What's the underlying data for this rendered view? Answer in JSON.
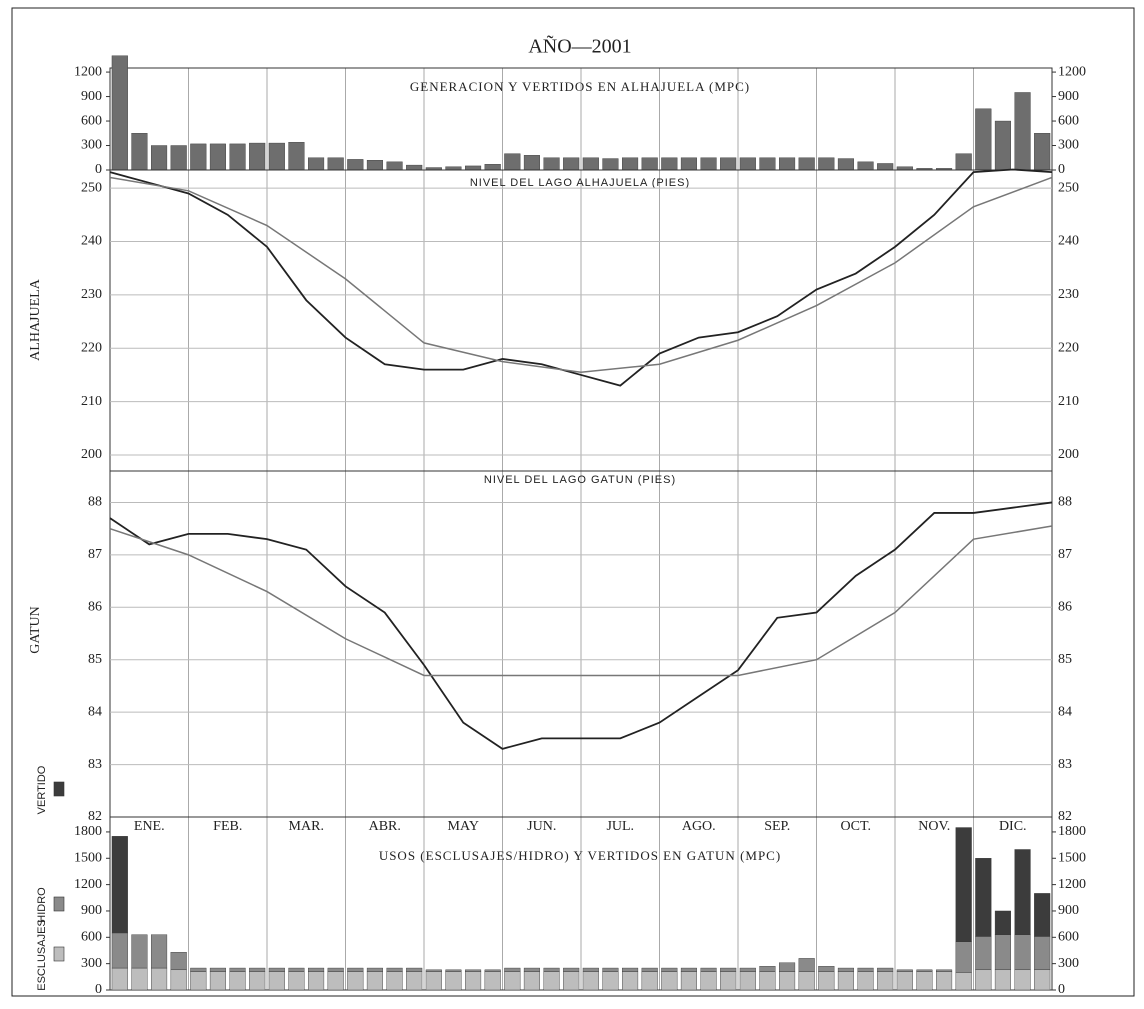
{
  "title": "AÑO—2001",
  "months": [
    "ENE.",
    "FEB.",
    "MAR.",
    "ABR.",
    "MAY",
    "JUN.",
    "JUL.",
    "AGO.",
    "SEP.",
    "OCT.",
    "NOV.",
    "DIC."
  ],
  "side_labels": {
    "alhajuela": "ALHAJUELA",
    "gatun": "GATUN"
  },
  "chart_data": [
    {
      "type": "bar",
      "title": "GENERACION Y VERTIDOS EN ALHAJUELA (MPC)",
      "ylim": [
        0,
        1250
      ],
      "yticks": [
        0,
        300,
        600,
        900,
        1200
      ],
      "xlim": [
        0,
        12
      ],
      "series": [
        {
          "color": "#6e6e6e",
          "values": [
            1400,
            450,
            300,
            300,
            320,
            320,
            320,
            330,
            330,
            340,
            150,
            150,
            130,
            120,
            100,
            60,
            30,
            40,
            50,
            70,
            200,
            180,
            150,
            150,
            150,
            140,
            150,
            150,
            150,
            150,
            150,
            150,
            150,
            150,
            150,
            150,
            150,
            140,
            100,
            80,
            40,
            20,
            20,
            200,
            750,
            600,
            950,
            450
          ]
        }
      ]
    },
    {
      "type": "line",
      "title": "NIVEL DEL LAGO ALHAJUELA (PIES)",
      "ylim": [
        197,
        253.4
      ],
      "yticks": [
        200,
        210,
        220,
        230,
        240,
        250
      ],
      "xlim": [
        0,
        12
      ],
      "grid": true,
      "series": [
        {
          "color": "#222222",
          "x": [
            0,
            0.5,
            1,
            1.5,
            2,
            2.5,
            3,
            3.5,
            4,
            4.5,
            5,
            5.5,
            6,
            6.5,
            7,
            7.5,
            8,
            8.5,
            9,
            9.5,
            10,
            10.5,
            11,
            11.5,
            12
          ],
          "values": [
            253,
            251,
            249,
            245,
            239,
            229,
            222,
            217,
            216,
            216,
            218,
            217,
            215,
            213,
            219,
            222,
            223,
            226,
            231,
            234,
            239,
            245,
            253,
            253.5,
            253
          ]
        },
        {
          "color": "#777777",
          "x": [
            0,
            1,
            2,
            3,
            4,
            5,
            6,
            7,
            8,
            9,
            10,
            11,
            12
          ],
          "values": [
            252,
            249.5,
            243,
            233,
            221,
            217.5,
            215.5,
            217,
            221.5,
            228,
            236,
            246.5,
            252
          ]
        }
      ]
    },
    {
      "type": "line",
      "title": "NIVEL DEL LAGO GATUN (PIES)",
      "ylim": [
        82,
        88.6
      ],
      "yticks": [
        82,
        83,
        84,
        85,
        86,
        87,
        88
      ],
      "xlim": [
        0,
        12
      ],
      "grid": true,
      "series": [
        {
          "color": "#222222",
          "x": [
            0,
            0.5,
            1,
            1.5,
            2,
            2.5,
            3,
            3.5,
            4,
            4.5,
            5,
            5.5,
            6,
            6.5,
            7,
            7.5,
            8,
            8.5,
            9,
            9.5,
            10,
            10.5,
            11,
            11.5,
            12
          ],
          "values": [
            87.7,
            87.2,
            87.4,
            87.4,
            87.3,
            87.1,
            86.4,
            85.9,
            84.9,
            83.8,
            83.3,
            83.5,
            83.5,
            83.5,
            83.8,
            84.3,
            84.8,
            85.8,
            85.9,
            86.6,
            87.1,
            87.8,
            87.8,
            87.9,
            88.0
          ]
        },
        {
          "color": "#777777",
          "x": [
            0,
            1,
            2,
            3,
            4,
            5,
            6,
            7,
            8,
            9,
            10,
            11,
            12
          ],
          "values": [
            87.5,
            87.0,
            86.3,
            85.4,
            84.7,
            84.7,
            84.7,
            84.7,
            84.7,
            85.0,
            85.9,
            87.3,
            87.55
          ]
        }
      ]
    },
    {
      "type": "bar",
      "title": "USOS (ESCLUSAJES/HIDRO) Y VERTIDOS EN GATUN (MPC)",
      "ylim": [
        0,
        1970
      ],
      "yticks": [
        0,
        300,
        600,
        900,
        1200,
        1500,
        1800
      ],
      "xlim": [
        0,
        12
      ],
      "series": [
        {
          "name": "ESCLUSAJES",
          "color": "#bdbdbd",
          "values": [
            250,
            250,
            250,
            230,
            210,
            210,
            210,
            210,
            210,
            210,
            210,
            210,
            210,
            210,
            210,
            210,
            210,
            210,
            210,
            210,
            210,
            210,
            210,
            210,
            210,
            210,
            210,
            210,
            210,
            210,
            210,
            210,
            210,
            210,
            210,
            210,
            210,
            210,
            210,
            210,
            210,
            210,
            210,
            200,
            230,
            230,
            230,
            230
          ]
        },
        {
          "name": "HIDRO",
          "color": "#8a8a8a",
          "values": [
            400,
            380,
            380,
            200,
            40,
            40,
            40,
            40,
            40,
            40,
            40,
            40,
            40,
            40,
            40,
            40,
            20,
            20,
            20,
            20,
            40,
            40,
            40,
            40,
            40,
            40,
            40,
            40,
            40,
            40,
            40,
            40,
            40,
            60,
            100,
            150,
            60,
            40,
            40,
            40,
            20,
            20,
            20,
            350,
            380,
            400,
            400,
            380
          ]
        },
        {
          "name": "VERTIDO",
          "color": "#3c3c3c",
          "values": [
            1100,
            0,
            0,
            0,
            0,
            0,
            0,
            0,
            0,
            0,
            0,
            0,
            0,
            0,
            0,
            0,
            0,
            0,
            0,
            0,
            0,
            0,
            0,
            0,
            0,
            0,
            0,
            0,
            0,
            0,
            0,
            0,
            0,
            0,
            0,
            0,
            0,
            0,
            0,
            0,
            0,
            0,
            0,
            1300,
            890,
            270,
            970,
            490
          ]
        }
      ]
    }
  ]
}
